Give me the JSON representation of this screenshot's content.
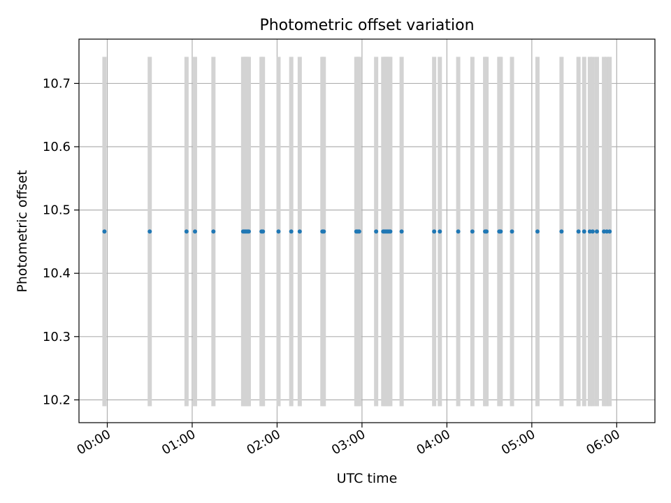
{
  "chart_data": {
    "type": "scatter",
    "title": "Photometric offset variation",
    "xlabel": "UTC time",
    "ylabel": "Photometric offset",
    "x_axis_type": "time",
    "xlim": [
      "23:40",
      "06:27"
    ],
    "ylim": [
      10.164,
      10.77
    ],
    "x_ticks": [
      "00:00",
      "01:00",
      "02:00",
      "03:00",
      "04:00",
      "05:00",
      "06:00"
    ],
    "y_ticks": [
      "10.2",
      "10.3",
      "10.4",
      "10.5",
      "10.6",
      "10.7"
    ],
    "grid": true,
    "colors": {
      "points": "#1f77b4",
      "bands": "#d3d3d3",
      "grid": "#b0b0b0"
    },
    "bands": {
      "y_range": [
        10.19,
        10.742
      ],
      "times": [
        "23:58",
        "00:30",
        "00:56",
        "01:02",
        "01:15",
        "01:36",
        "01:37",
        "01:38",
        "01:39",
        "01:40",
        "01:49",
        "01:50",
        "02:01",
        "02:10",
        "02:16",
        "02:32",
        "02:33",
        "02:56",
        "02:57",
        "02:58",
        "03:10",
        "03:15",
        "03:16",
        "03:17",
        "03:18",
        "03:19",
        "03:20",
        "03:28",
        "03:51",
        "03:55",
        "04:08",
        "04:18",
        "04:27",
        "04:28",
        "04:37",
        "04:38",
        "04:46",
        "05:04",
        "05:21",
        "05:33",
        "05:37",
        "05:41",
        "05:43",
        "05:46",
        "05:51",
        "05:53",
        "05:55"
      ]
    },
    "series": [
      {
        "x": [
          "23:58",
          "00:30",
          "00:56",
          "01:02",
          "01:15",
          "01:36",
          "01:37",
          "01:38",
          "01:39",
          "01:40",
          "01:49",
          "01:50",
          "02:01",
          "02:10",
          "02:16",
          "02:32",
          "02:33",
          "02:56",
          "02:57",
          "02:58",
          "03:10",
          "03:15",
          "03:16",
          "03:17",
          "03:18",
          "03:19",
          "03:20",
          "03:28",
          "03:51",
          "03:55",
          "04:08",
          "04:18",
          "04:27",
          "04:28",
          "04:37",
          "04:38",
          "04:46",
          "05:04",
          "05:21",
          "05:33",
          "05:37",
          "05:41",
          "05:43",
          "05:46",
          "05:51",
          "05:53",
          "05:55"
        ],
        "y": [
          10.466,
          10.466,
          10.466,
          10.466,
          10.466,
          10.466,
          10.466,
          10.466,
          10.466,
          10.466,
          10.466,
          10.466,
          10.466,
          10.466,
          10.466,
          10.466,
          10.466,
          10.466,
          10.466,
          10.466,
          10.466,
          10.466,
          10.466,
          10.466,
          10.466,
          10.466,
          10.466,
          10.466,
          10.466,
          10.466,
          10.466,
          10.466,
          10.466,
          10.466,
          10.466,
          10.466,
          10.466,
          10.466,
          10.466,
          10.466,
          10.466,
          10.466,
          10.466,
          10.466,
          10.466,
          10.466,
          10.466
        ]
      }
    ]
  }
}
